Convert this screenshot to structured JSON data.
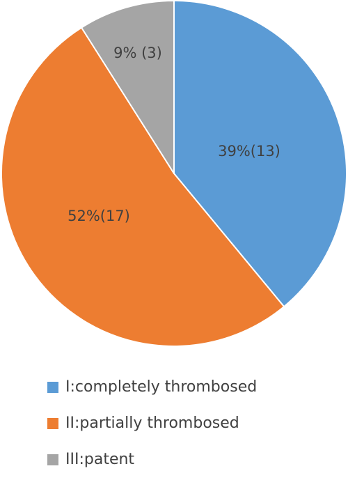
{
  "chart_data": {
    "type": "pie",
    "start_angle_deg": 0,
    "direction": "clockwise",
    "slices": [
      {
        "name": "I:completely thrombosed",
        "percent": 39,
        "count": 13,
        "label": "39%(13)",
        "color": "#5b9bd5"
      },
      {
        "name": "II:partially thrombosed",
        "percent": 52,
        "count": 17,
        "label": "52%(17)",
        "color": "#ed7d31"
      },
      {
        "name": "III:patent",
        "percent": 9,
        "count": 3,
        "label": "9% (3)",
        "color": "#a5a5a5"
      }
    ],
    "legend_position": "bottom",
    "border_color": "#ffffff"
  }
}
